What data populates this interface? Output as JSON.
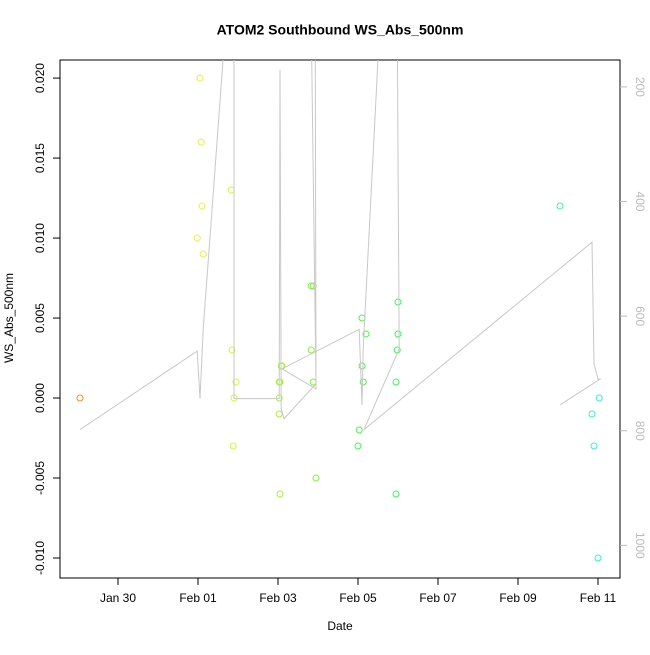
{
  "chart_data": {
    "type": "scatter",
    "title": "ATOM2 Southbound WS_Abs_500nm",
    "x_label": "Date",
    "y_label": "WS_Abs_500nm",
    "xlim": [
      28.55,
      42.55
    ],
    "ylim": [
      -0.01125,
      0.02113
    ],
    "y2lim": [
      1057,
      153
    ],
    "xticks": [
      {
        "value": 30,
        "label": "Jan 30"
      },
      {
        "value": 32,
        "label": "Feb 01"
      },
      {
        "value": 34,
        "label": "Feb 03"
      },
      {
        "value": 36,
        "label": "Feb 05"
      },
      {
        "value": 38,
        "label": "Feb 07"
      },
      {
        "value": 40,
        "label": "Feb 09"
      },
      {
        "value": 42,
        "label": "Feb 11"
      }
    ],
    "yticks": [
      {
        "value": -0.01,
        "label": "-0.010"
      },
      {
        "value": -0.005,
        "label": "-0.005"
      },
      {
        "value": 0,
        "label": "0.000"
      },
      {
        "value": 0.005,
        "label": "0.005"
      },
      {
        "value": 0.01,
        "label": "0.010"
      },
      {
        "value": 0.015,
        "label": "0.015"
      },
      {
        "value": 0.02,
        "label": "0.020"
      }
    ],
    "y2ticks": [
      200,
      400,
      600,
      800,
      1000
    ],
    "series": [
      {
        "x": [
          29.05,
          32.05,
          32.08,
          32.1,
          31.98,
          32.13,
          32.83,
          32.85,
          32.9,
          32.95,
          32.88,
          34.03,
          34.03,
          34.05,
          34.08,
          34.1,
          34.03,
          34.05,
          34.83,
          34.88,
          34.83,
          34.88,
          34.95,
          36.1,
          36.2,
          36.1,
          36.13,
          36.03,
          36.0,
          37.0,
          37.0,
          36.98,
          36.95,
          36.95,
          41.05,
          41.85,
          41.9,
          42.03,
          42.0
        ],
        "values": [
          0.0,
          0.02,
          0.016,
          0.012,
          0.01,
          0.009,
          0.013,
          0.003,
          0.0,
          0.001,
          -0.003,
          0.0,
          0.001,
          0.001,
          0.002,
          0.002,
          -0.001,
          -0.006,
          0.007,
          0.007,
          0.003,
          0.001,
          -0.005,
          0.005,
          0.004,
          0.002,
          0.001,
          -0.002,
          -0.003,
          0.006,
          0.004,
          0.003,
          0.001,
          -0.006,
          0.012,
          -0.001,
          -0.003,
          0.0,
          -0.01
        ],
        "colors": [
          "#f08c28",
          "#e8f040",
          "#e8f040",
          "#e8f040",
          "#e8f040",
          "#e8f040",
          "#dcf03c",
          "#dcf03c",
          "#dcf03c",
          "#dcf03c",
          "#dcf03c",
          "#a8f03a",
          "#a8f03a",
          "#a8f03a",
          "#a8f03a",
          "#a8f03a",
          "#a8f03a",
          "#a8f03a",
          "#88ee3a",
          "#88ee3a",
          "#88ee3a",
          "#88ee3a",
          "#88ee3a",
          "#50ee50",
          "#50ee50",
          "#50ee50",
          "#50ee50",
          "#50ee50",
          "#50ee50",
          "#40ee60",
          "#40ee60",
          "#40ee60",
          "#40ee60",
          "#40ee60",
          "#40eea0",
          "#38f0c8",
          "#38f0c8",
          "#38f0c8",
          "#38f0c8"
        ]
      },
      {
        "axis": "y2",
        "color": "#c8c8c8",
        "x": [
          29.05,
          31.98,
          32.05,
          32.13,
          32.7,
          32.9,
          32.9,
          32.9,
          34.03,
          34.05,
          34.08,
          34.15,
          34.95,
          34.83,
          34.93,
          34.95,
          34.1,
          36.03,
          36.1,
          36.13,
          36.55,
          36.98,
          37.03,
          36.15,
          41.85,
          41.9,
          42.0,
          42.05,
          41.05
        ],
        "values": [
          798,
          661,
          744,
          623,
          83,
          83,
          219,
          744,
          744,
          170,
          762,
          779,
          718,
          83,
          83,
          727,
          692,
          623,
          755,
          657,
          83,
          83,
          657,
          798,
          471,
          683,
          710,
          710,
          755
        ]
      }
    ]
  }
}
